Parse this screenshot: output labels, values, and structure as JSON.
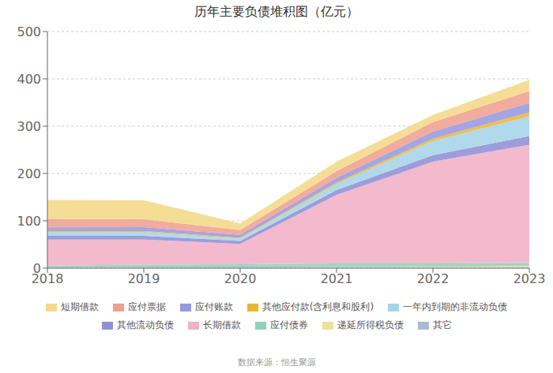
{
  "chart_data": {
    "type": "area",
    "title": "历年主要负债堆积图（亿元）",
    "stacked": true,
    "grid": true,
    "legend": "bottom",
    "x": [
      2018,
      2019,
      2020,
      2021,
      2022,
      2023
    ],
    "xlim": [
      2018,
      2023
    ],
    "xticks": [
      2018,
      2019,
      2020,
      2021,
      2022,
      2023
    ],
    "ylim": [
      0,
      500
    ],
    "yticks": [
      0,
      100,
      200,
      300,
      400,
      500
    ],
    "annotations": [
      "数据来源：恒生聚源"
    ],
    "series": [
      {
        "name": "其它",
        "color": "#aab8d5",
        "values": [
          0.3,
          0.3,
          0.3,
          0.5,
          0.8,
          1.0
        ]
      },
      {
        "name": "递延所得税负债",
        "color": "#f0e0a0",
        "values": [
          1.0,
          1.2,
          1.0,
          1.5,
          2.0,
          3.0
        ]
      },
      {
        "name": "应付债券",
        "color": "#90d0c0",
        "values": [
          4,
          6,
          7,
          8,
          7,
          7
        ]
      },
      {
        "name": "长期借款",
        "color": "#f0b0c5",
        "values": [
          55,
          53,
          43,
          145,
          215,
          250
        ]
      },
      {
        "name": "其他流动负债",
        "color": "#9090d5",
        "values": [
          8,
          8,
          6,
          10,
          14,
          18
        ]
      },
      {
        "name": "一年内到期的非流动负债",
        "color": "#a5d5e8",
        "values": [
          8,
          8,
          5,
          13,
          30,
          42
        ]
      },
      {
        "name": "其他应付款(含利息和股利)",
        "color": "#e8b830",
        "values": [
          2,
          2,
          2,
          3,
          5,
          8
        ]
      },
      {
        "name": "应付账款",
        "color": "#9898e0",
        "values": [
          8,
          8,
          6,
          10,
          15,
          20
        ]
      },
      {
        "name": "应付票据",
        "color": "#f0a090",
        "values": [
          18,
          17,
          10,
          14,
          20,
          25
        ]
      },
      {
        "name": "短期借款",
        "color": "#f5d888",
        "values": [
          40,
          40,
          14,
          20,
          15,
          24
        ]
      }
    ]
  }
}
